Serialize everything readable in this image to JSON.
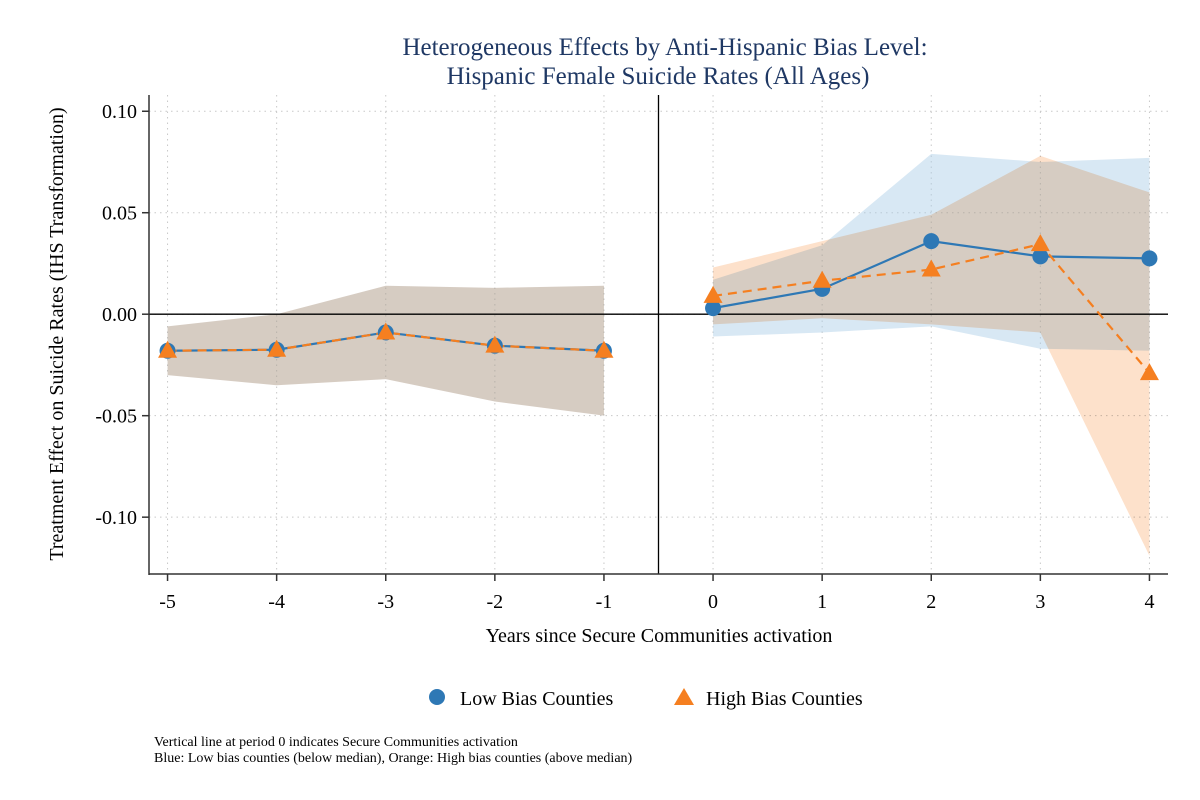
{
  "chart_data": {
    "type": "line",
    "title_lines": [
      "Heterogeneous Effects by Anti-Hispanic Bias Level:",
      "Hispanic Female Suicide Rates (All Ages)"
    ],
    "xlabel": "Years since Secure Communities activation",
    "ylabel": "Treatment Effect on Suicide Rates (IHS Transformation)",
    "x": [
      -5,
      -4,
      -3,
      -2,
      -1,
      0,
      1,
      2,
      3,
      4
    ],
    "x_tick_labels": [
      "-5",
      "-4",
      "-3",
      "-2",
      "-1",
      "0",
      "1",
      "2",
      "3",
      "4"
    ],
    "y_ticks": [
      0.1,
      0.05,
      0.0,
      -0.05,
      -0.1
    ],
    "y_tick_labels": [
      "0.10",
      "0.05",
      "0.00",
      "-0.05",
      "-0.10"
    ],
    "ylim": [
      -0.128,
      0.108
    ],
    "xlim": [
      -5.17,
      4.17
    ],
    "grid": true,
    "reference_lines": {
      "vertical_x": -0.5,
      "horizontal_y": 0
    },
    "legend_position": "bottom",
    "series": [
      {
        "name": "Low Bias Counties",
        "color": "#2e78b5",
        "marker": "circle",
        "line_style": "solid",
        "ci_color": "#a9cbe6",
        "pre": {
          "x": [
            -5,
            -4,
            -3,
            -2,
            -1
          ],
          "y": [
            -0.018,
            -0.0175,
            -0.009,
            -0.0155,
            -0.018
          ],
          "ci_low": [
            -0.03,
            -0.035,
            -0.032,
            -0.043,
            -0.05
          ],
          "ci_high": [
            -0.006,
            0.0,
            0.014,
            0.013,
            0.014
          ]
        },
        "post": {
          "x": [
            0,
            1,
            2,
            3,
            4
          ],
          "y": [
            0.003,
            0.0125,
            0.036,
            0.0285,
            0.0275
          ],
          "ci_low": [
            -0.011,
            -0.009,
            -0.006,
            -0.017,
            -0.018
          ],
          "ci_high": [
            0.017,
            0.034,
            0.079,
            0.075,
            0.077
          ]
        }
      },
      {
        "name": "High Bias Counties",
        "color": "#f57f20",
        "marker": "triangle",
        "line_style": "dashed",
        "ci_color": "#fcc9a0",
        "pre": {
          "x": [
            -5,
            -4,
            -3,
            -2,
            -1
          ],
          "y": [
            -0.018,
            -0.0175,
            -0.009,
            -0.0155,
            -0.018
          ],
          "ci_low": [
            -0.03,
            -0.035,
            -0.032,
            -0.043,
            -0.05
          ],
          "ci_high": [
            -0.006,
            0.0,
            0.014,
            0.013,
            0.014
          ]
        },
        "post": {
          "x": [
            0,
            1,
            2,
            3,
            4
          ],
          "y": [
            0.009,
            0.0165,
            0.022,
            0.0345,
            -0.029
          ],
          "ci_low": [
            -0.005,
            -0.002,
            -0.005,
            -0.009,
            -0.119
          ],
          "ci_high": [
            0.023,
            0.036,
            0.049,
            0.078,
            0.06
          ]
        }
      }
    ],
    "notes": [
      "Vertical line at period 0 indicates Secure Communities activation",
      "Blue: Low bias counties (below median), Orange: High bias counties (above median)"
    ]
  }
}
